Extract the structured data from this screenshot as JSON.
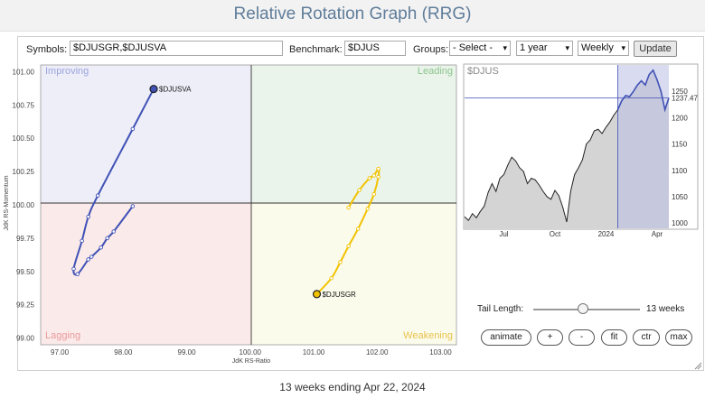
{
  "header": {
    "title": "Relative Rotation Graph (RRG)"
  },
  "controls": {
    "symbols_label": "Symbols:",
    "symbols_value": "$DJUSGR,$DJUSVA",
    "benchmark_label": "Benchmark:",
    "benchmark_value": "$DJUS",
    "groups_label": "Groups:",
    "groups_value": "- Select -",
    "period_value": "1 year",
    "frequency_value": "Weekly",
    "update_label": "Update"
  },
  "rrg": {
    "quadrants": {
      "improving": "Improving",
      "leading": "Leading",
      "lagging": "Lagging",
      "weakening": "Weakening"
    },
    "colors": {
      "improving": "#eeeef9",
      "leading": "#eaf4ea",
      "lagging": "#fbeaea",
      "weakening": "#fbfbec",
      "DJUSVA": "#3f51b5",
      "DJUSGR": "#f2c200"
    },
    "x_axis_label": "JdK RS-Ratio",
    "y_axis_label": "JdK RS-Momentum",
    "x_ticks": [
      "97.00",
      "98.00",
      "99.00",
      "100.00",
      "101.00",
      "102.00",
      "103.00"
    ],
    "y_ticks": [
      "101.00",
      "100.75",
      "100.50",
      "100.25",
      "100.00",
      "99.75",
      "99.50",
      "99.25",
      "99.00"
    ],
    "x_range": [
      96.7,
      103.25
    ],
    "y_range": [
      98.95,
      101.05
    ],
    "series": [
      {
        "name": "$DJUSVA",
        "points": [
          [
            98.15,
            99.99
          ],
          [
            97.85,
            99.8
          ],
          [
            97.75,
            99.75
          ],
          [
            97.65,
            99.68
          ],
          [
            97.5,
            99.61
          ],
          [
            97.45,
            99.59
          ],
          [
            97.28,
            99.48
          ],
          [
            97.22,
            99.52
          ],
          [
            97.35,
            99.73
          ],
          [
            97.45,
            99.91
          ],
          [
            97.6,
            100.07
          ],
          [
            98.15,
            100.57
          ],
          [
            98.48,
            100.87
          ]
        ]
      },
      {
        "name": "$DJUSGR",
        "points": [
          [
            101.55,
            99.98
          ],
          [
            101.72,
            100.11
          ],
          [
            101.88,
            100.2
          ],
          [
            101.95,
            100.22
          ],
          [
            102.02,
            100.27
          ],
          [
            102.02,
            100.21
          ],
          [
            101.95,
            100.08
          ],
          [
            101.85,
            99.97
          ],
          [
            101.7,
            99.82
          ],
          [
            101.55,
            99.69
          ],
          [
            101.42,
            99.57
          ],
          [
            101.28,
            99.45
          ],
          [
            101.05,
            99.33
          ]
        ]
      }
    ]
  },
  "chart_data": {
    "type": "line",
    "title": "$DJUS",
    "series": [
      {
        "name": "$DJUS",
        "x": [
          "2023-04-24",
          "2023-05-01",
          "2023-05-08",
          "2023-05-15",
          "2023-05-22",
          "2023-05-29",
          "2023-06-05",
          "2023-06-12",
          "2023-06-19",
          "2023-06-26",
          "2023-07-03",
          "2023-07-10",
          "2023-07-17",
          "2023-07-24",
          "2023-07-31",
          "2023-08-07",
          "2023-08-14",
          "2023-08-21",
          "2023-08-28",
          "2023-09-04",
          "2023-09-11",
          "2023-09-18",
          "2023-09-25",
          "2023-10-02",
          "2023-10-09",
          "2023-10-16",
          "2023-10-23",
          "2023-10-30",
          "2023-11-06",
          "2023-11-13",
          "2023-11-20",
          "2023-11-27",
          "2023-12-04",
          "2023-12-11",
          "2023-12-18",
          "2023-12-25",
          "2024-01-01",
          "2024-01-08",
          "2024-01-15",
          "2024-01-22",
          "2024-01-29",
          "2024-02-05",
          "2024-02-12",
          "2024-02-19",
          "2024-02-26",
          "2024-03-04",
          "2024-03-11",
          "2024-03-18",
          "2024-03-25",
          "2024-04-01",
          "2024-04-08",
          "2024-04-15",
          "2024-04-22"
        ],
        "values": [
          1012,
          1005,
          1018,
          1010,
          1022,
          1032,
          1058,
          1075,
          1060,
          1085,
          1092,
          1110,
          1125,
          1118,
          1105,
          1098,
          1075,
          1085,
          1082,
          1072,
          1060,
          1050,
          1045,
          1062,
          1052,
          1030,
          1002,
          1060,
          1092,
          1105,
          1120,
          1150,
          1158,
          1175,
          1178,
          1170,
          1182,
          1192,
          1205,
          1215,
          1232,
          1242,
          1240,
          1250,
          1262,
          1270,
          1262,
          1282,
          1290,
          1272,
          1250,
          1215,
          1237.47
        ]
      }
    ],
    "x_tick_labels": [
      "Jul",
      "Oct",
      "2024",
      "Apr"
    ],
    "y_ticks": [
      "1250",
      "1200",
      "1150",
      "1100",
      "1050",
      "1000"
    ],
    "ylim": [
      990,
      1300
    ],
    "last_value_label": "1237.47",
    "highlight_start": "2024-01-22"
  },
  "tail": {
    "label": "Tail Length:",
    "value": "13 weeks",
    "weeks": 13
  },
  "buttons": {
    "animate": "animate",
    "plus": "+",
    "minus": "-",
    "fit": "fit",
    "ctr": "ctr",
    "max": "max"
  },
  "footer": {
    "text": "13 weeks ending Apr 22, 2024"
  }
}
